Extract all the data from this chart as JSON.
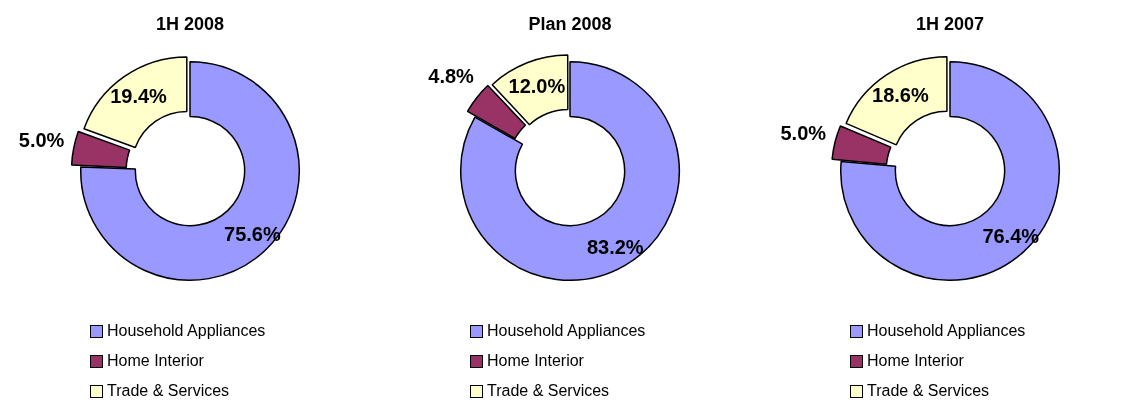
{
  "chart_data": [
    {
      "type": "donut",
      "title": "1H 2008",
      "categories": [
        "Household Appliances",
        "Home Interior",
        "Trade & Services"
      ],
      "values": [
        75.6,
        5.0,
        19.4
      ],
      "colors": [
        "#9999ff",
        "#993366",
        "#ffffcc"
      ],
      "value_labels": [
        "75.6%",
        "5.0%",
        "19.4%"
      ],
      "legend": "bottom"
    },
    {
      "type": "donut",
      "title": "Plan 2008",
      "categories": [
        "Household Appliances",
        "Home Interior",
        "Trade & Services"
      ],
      "values": [
        83.2,
        4.8,
        12.0
      ],
      "colors": [
        "#9999ff",
        "#993366",
        "#ffffcc"
      ],
      "value_labels": [
        "83.2%",
        "4.8%",
        "12.0%"
      ],
      "legend": "bottom"
    },
    {
      "type": "donut",
      "title": "1H 2007",
      "categories": [
        "Household Appliances",
        "Home Interior",
        "Trade & Services"
      ],
      "values": [
        76.4,
        5.0,
        18.6
      ],
      "colors": [
        "#9999ff",
        "#993366",
        "#ffffcc"
      ],
      "value_labels": [
        "76.4%",
        "5.0%",
        "18.6%"
      ],
      "legend": "bottom"
    }
  ]
}
